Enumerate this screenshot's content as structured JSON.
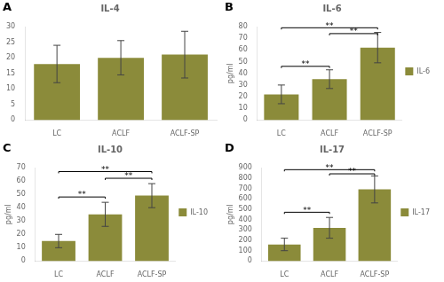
{
  "chart_data": [
    {
      "type": "bar",
      "panel_label": "A",
      "title": "IL-4",
      "categories": [
        "LC",
        "ACLF",
        "ACLF-SP"
      ],
      "values": [
        18.0,
        20.0,
        21.0
      ],
      "errors": [
        6.0,
        5.5,
        7.5
      ],
      "color": "#8B8B3A",
      "ylim": [
        0,
        30
      ],
      "yticks": [
        0,
        5,
        10,
        15,
        20,
        25,
        30
      ],
      "grid": false
    },
    {
      "type": "bar",
      "panel_label": "B",
      "title": "IL-6",
      "categories": [
        "LC",
        "ACLF",
        "ACLF-SP"
      ],
      "series": [
        {
          "name": "IL-6",
          "color": "#8B8B3A",
          "values": [
            22.0,
            35.0,
            62.0
          ],
          "errors": [
            8.0,
            8.0,
            13.0
          ]
        }
      ],
      "ylabel": "pg/ml",
      "ylim": [
        0,
        80
      ],
      "yticks": [
        0,
        10,
        20,
        30,
        40,
        50,
        60,
        70,
        80
      ],
      "grid": false,
      "legend": "right",
      "annotations": [
        {
          "from": "LC",
          "to": "ACLF",
          "y": 46,
          "label": "**"
        },
        {
          "from": "ACLF",
          "to": "ACLF-SP",
          "y": 74,
          "label": "**"
        },
        {
          "from": "LC",
          "to": "ACLF-SP",
          "y": 79,
          "label": "**"
        }
      ]
    },
    {
      "type": "bar",
      "panel_label": "C",
      "title": "IL-10",
      "categories": [
        "LC",
        "ACLF",
        "ACLF-SP"
      ],
      "series": [
        {
          "name": "IL-10",
          "color": "#8B8B3A",
          "values": [
            15.0,
            35.0,
            49.0
          ],
          "errors": [
            5.0,
            9.0,
            9.0
          ]
        }
      ],
      "ylabel": "pg/ml",
      "ylim": [
        0,
        70
      ],
      "yticks": [
        0,
        10,
        20,
        30,
        40,
        50,
        60,
        70
      ],
      "grid": false,
      "legend": "right",
      "annotations": [
        {
          "from": "LC",
          "to": "ACLF",
          "y": 48,
          "label": "**"
        },
        {
          "from": "ACLF",
          "to": "ACLF-SP",
          "y": 62,
          "label": "**"
        },
        {
          "from": "LC",
          "to": "ACLF-SP",
          "y": 67,
          "label": "**"
        }
      ]
    },
    {
      "type": "bar",
      "panel_label": "D",
      "title": "IL-17",
      "categories": [
        "LC",
        "ACLF",
        "ACLF-SP"
      ],
      "series": [
        {
          "name": "IL-17",
          "color": "#8B8B3A",
          "values": [
            160.0,
            320.0,
            690.0
          ],
          "errors": [
            60.0,
            100.0,
            130.0
          ]
        }
      ],
      "ylabel": "pg/ml",
      "ylim": [
        0,
        900
      ],
      "yticks": [
        0,
        100,
        200,
        300,
        400,
        500,
        600,
        700,
        800,
        900
      ],
      "grid": false,
      "legend": "right",
      "annotations": [
        {
          "from": "LC",
          "to": "ACLF",
          "y": 470,
          "label": "**"
        },
        {
          "from": "ACLF",
          "to": "ACLF-SP",
          "y": 840,
          "label": "**"
        },
        {
          "from": "LC",
          "to": "ACLF-SP",
          "y": 880,
          "label": "**"
        }
      ]
    }
  ]
}
